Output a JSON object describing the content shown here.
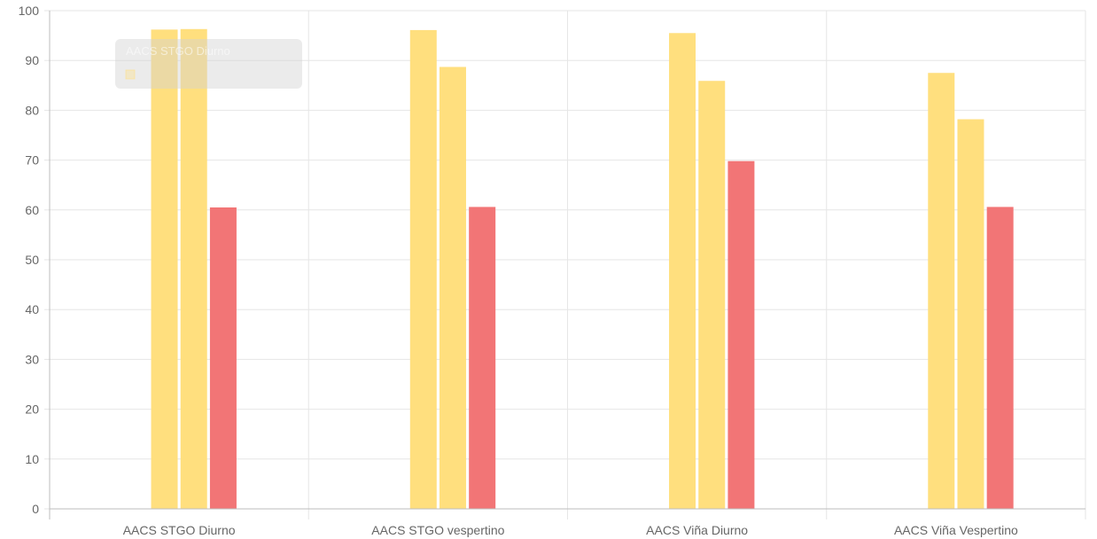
{
  "chart_data": {
    "type": "bar",
    "categories": [
      "AACS STGO Diurno",
      "AACS STGO vespertino",
      "AACS Viña Diurno",
      "AACS Viña Vespertino"
    ],
    "series": [
      {
        "values": [
          null,
          null,
          null,
          null
        ],
        "color": "#ffdf7e"
      },
      {
        "values": [
          96.2,
          96.1,
          95.5,
          87.5
        ],
        "color": "#ffdf7e"
      },
      {
        "values": [
          96.3,
          88.7,
          85.9,
          78.2
        ],
        "color": "#ffdf7e"
      },
      {
        "values": [
          60.5,
          60.6,
          69.8,
          60.6
        ],
        "color": "#f27576"
      }
    ],
    "ylim": [
      0,
      100
    ],
    "yticks": [
      0,
      10,
      20,
      30,
      40,
      50,
      60,
      70,
      80,
      90,
      100
    ],
    "grid": true,
    "title": "",
    "xlabel": "",
    "ylabel": ""
  },
  "tooltip": {
    "title": "AACS STGO Diurno",
    "swatch_color": "#ffdf7e"
  }
}
